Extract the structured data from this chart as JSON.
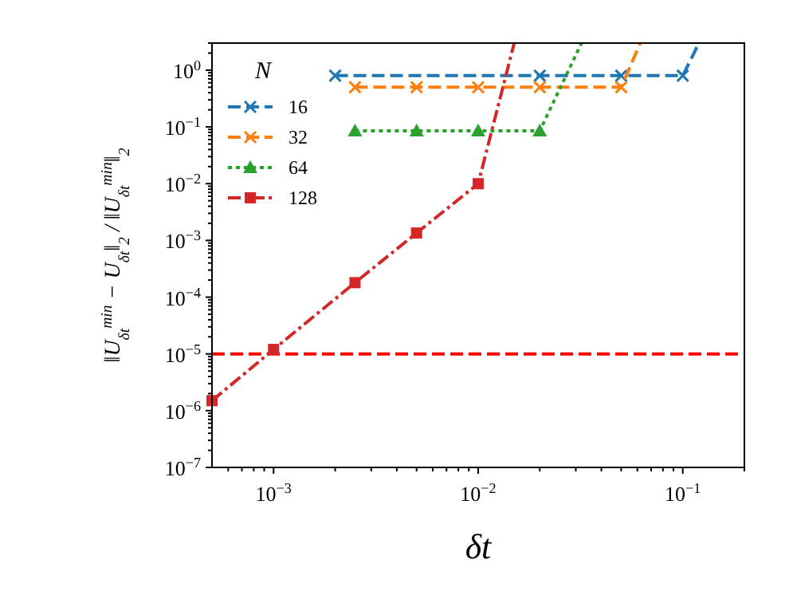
{
  "chart_data": {
    "type": "line",
    "xlabel": "δt",
    "ylabel": "‖U$_{δt}$$^{min}$ − U$_{δt}$‖$_{2}$ / ‖U$_{δt}$$^{min}$‖$_{2}$",
    "legend_title": "N",
    "legend": "top left",
    "log": "xy",
    "xlim": [
      0.0005,
      0.2
    ],
    "ylim": [
      1e-07,
      3
    ],
    "xticks": [
      {
        "value": 0.001,
        "label": "10$^{−3}$"
      },
      {
        "value": 0.01,
        "label": "10$^{−2}$"
      },
      {
        "value": 0.1,
        "label": "10$^{−1}$"
      },
      {
        "value": 0.0006,
        "label": null
      },
      {
        "value": 0.0007,
        "label": null
      },
      {
        "value": 0.0008,
        "label": null
      },
      {
        "value": 0.0009,
        "label": null
      },
      {
        "value": 0.002,
        "label": null
      },
      {
        "value": 0.003,
        "label": null
      },
      {
        "value": 0.004,
        "label": null
      },
      {
        "value": 0.005,
        "label": null
      },
      {
        "value": 0.006,
        "label": null
      },
      {
        "value": 0.007,
        "label": null
      },
      {
        "value": 0.008,
        "label": null
      },
      {
        "value": 0.009,
        "label": null
      },
      {
        "value": 0.02,
        "label": null
      },
      {
        "value": 0.03,
        "label": null
      },
      {
        "value": 0.04,
        "label": null
      },
      {
        "value": 0.05,
        "label": null
      },
      {
        "value": 0.06,
        "label": null
      },
      {
        "value": 0.07,
        "label": null
      },
      {
        "value": 0.08,
        "label": null
      },
      {
        "value": 0.09,
        "label": null
      },
      {
        "value": 0.2,
        "label": null
      }
    ],
    "yticks": [
      {
        "value": 1e-07,
        "label": "10$^{−7}$"
      },
      {
        "value": 1e-06,
        "label": "10$^{−6}$"
      },
      {
        "value": 1e-05,
        "label": "10$^{−5}$"
      },
      {
        "value": 0.0001,
        "label": "10$^{−4}$"
      },
      {
        "value": 0.001,
        "label": "10$^{−3}$"
      },
      {
        "value": 0.01,
        "label": "10$^{−2}$"
      },
      {
        "value": 0.1,
        "label": "10$^{−1}$"
      },
      {
        "value": 1,
        "label": "10$^{0}$"
      },
      {
        "value": 2e-07,
        "label": null
      },
      {
        "value": 3e-07,
        "label": null
      },
      {
        "value": 4e-07,
        "label": null
      },
      {
        "value": 5e-07,
        "label": null
      },
      {
        "value": 6e-07,
        "label": null
      },
      {
        "value": 7e-07,
        "label": null
      },
      {
        "value": 8e-07,
        "label": null
      },
      {
        "value": 9e-07,
        "label": null
      },
      {
        "value": 2e-06,
        "label": null
      },
      {
        "value": 3e-06,
        "label": null
      },
      {
        "value": 4e-06,
        "label": null
      },
      {
        "value": 5e-06,
        "label": null
      },
      {
        "value": 6e-06,
        "label": null
      },
      {
        "value": 7e-06,
        "label": null
      },
      {
        "value": 8e-06,
        "label": null
      },
      {
        "value": 9e-06,
        "label": null
      },
      {
        "value": 2e-05,
        "label": null
      },
      {
        "value": 3e-05,
        "label": null
      },
      {
        "value": 4e-05,
        "label": null
      },
      {
        "value": 5e-05,
        "label": null
      },
      {
        "value": 6e-05,
        "label": null
      },
      {
        "value": 7e-05,
        "label": null
      },
      {
        "value": 8e-05,
        "label": null
      },
      {
        "value": 9e-05,
        "label": null
      },
      {
        "value": 0.0002,
        "label": null
      },
      {
        "value": 0.0003,
        "label": null
      },
      {
        "value": 0.0004,
        "label": null
      },
      {
        "value": 0.0005,
        "label": null
      },
      {
        "value": 0.0006,
        "label": null
      },
      {
        "value": 0.0007,
        "label": null
      },
      {
        "value": 0.0008,
        "label": null
      },
      {
        "value": 0.0009,
        "label": null
      },
      {
        "value": 0.002,
        "label": null
      },
      {
        "value": 0.003,
        "label": null
      },
      {
        "value": 0.004,
        "label": null
      },
      {
        "value": 0.005,
        "label": null
      },
      {
        "value": 0.006,
        "label": null
      },
      {
        "value": 0.007,
        "label": null
      },
      {
        "value": 0.008,
        "label": null
      },
      {
        "value": 0.009,
        "label": null
      },
      {
        "value": 0.02,
        "label": null
      },
      {
        "value": 0.03,
        "label": null
      },
      {
        "value": 0.04,
        "label": null
      },
      {
        "value": 0.05,
        "label": null
      },
      {
        "value": 0.06,
        "label": null
      },
      {
        "value": 0.07,
        "label": null
      },
      {
        "value": 0.08,
        "label": null
      },
      {
        "value": 0.09,
        "label": null
      },
      {
        "value": 0.2,
        "label": null
      },
      {
        "value": 0.3,
        "label": null
      },
      {
        "value": 0.4,
        "label": null
      },
      {
        "value": 0.5,
        "label": null
      },
      {
        "value": 0.6,
        "label": null
      },
      {
        "value": 0.7,
        "label": null
      },
      {
        "value": 0.8,
        "label": null
      },
      {
        "value": 0.9,
        "label": null
      },
      {
        "value": 2,
        "label": null
      },
      {
        "value": 3,
        "label": null
      }
    ],
    "series": [
      {
        "name": "16",
        "color": "#1f77b4",
        "marker": "cross",
        "line_style": "dashed",
        "x": [
          0.002,
          0.02,
          0.05,
          0.1,
          0.12
        ],
        "values": [
          0.8,
          0.8,
          0.8,
          0.8,
          3
        ]
      },
      {
        "name": "32",
        "color": "#ff7f0e",
        "marker": "cross",
        "line_style": "dashed",
        "x": [
          0.0025,
          0.005,
          0.01,
          0.02,
          0.05,
          0.062
        ],
        "values": [
          0.5,
          0.5,
          0.5,
          0.5,
          0.5,
          3
        ]
      },
      {
        "name": "64",
        "color": "#2ca02c",
        "marker": "triangle",
        "line_style": "dotted",
        "x": [
          0.0025,
          0.005,
          0.01,
          0.02,
          0.032
        ],
        "values": [
          0.085,
          0.085,
          0.085,
          0.085,
          3
        ]
      },
      {
        "name": "128",
        "color": "#d62728",
        "marker": "square",
        "line_style": "dashdot",
        "x": [
          0.0005,
          0.001,
          0.0025,
          0.005,
          0.01,
          0.015
        ],
        "values": [
          1.5e-06,
          1.2e-05,
          0.00018,
          0.00135,
          0.01,
          3
        ]
      }
    ],
    "ref_lines": [
      {
        "axis": "y",
        "value": 1e-05,
        "color": "#ff0000",
        "line_style": "dashed"
      }
    ]
  }
}
